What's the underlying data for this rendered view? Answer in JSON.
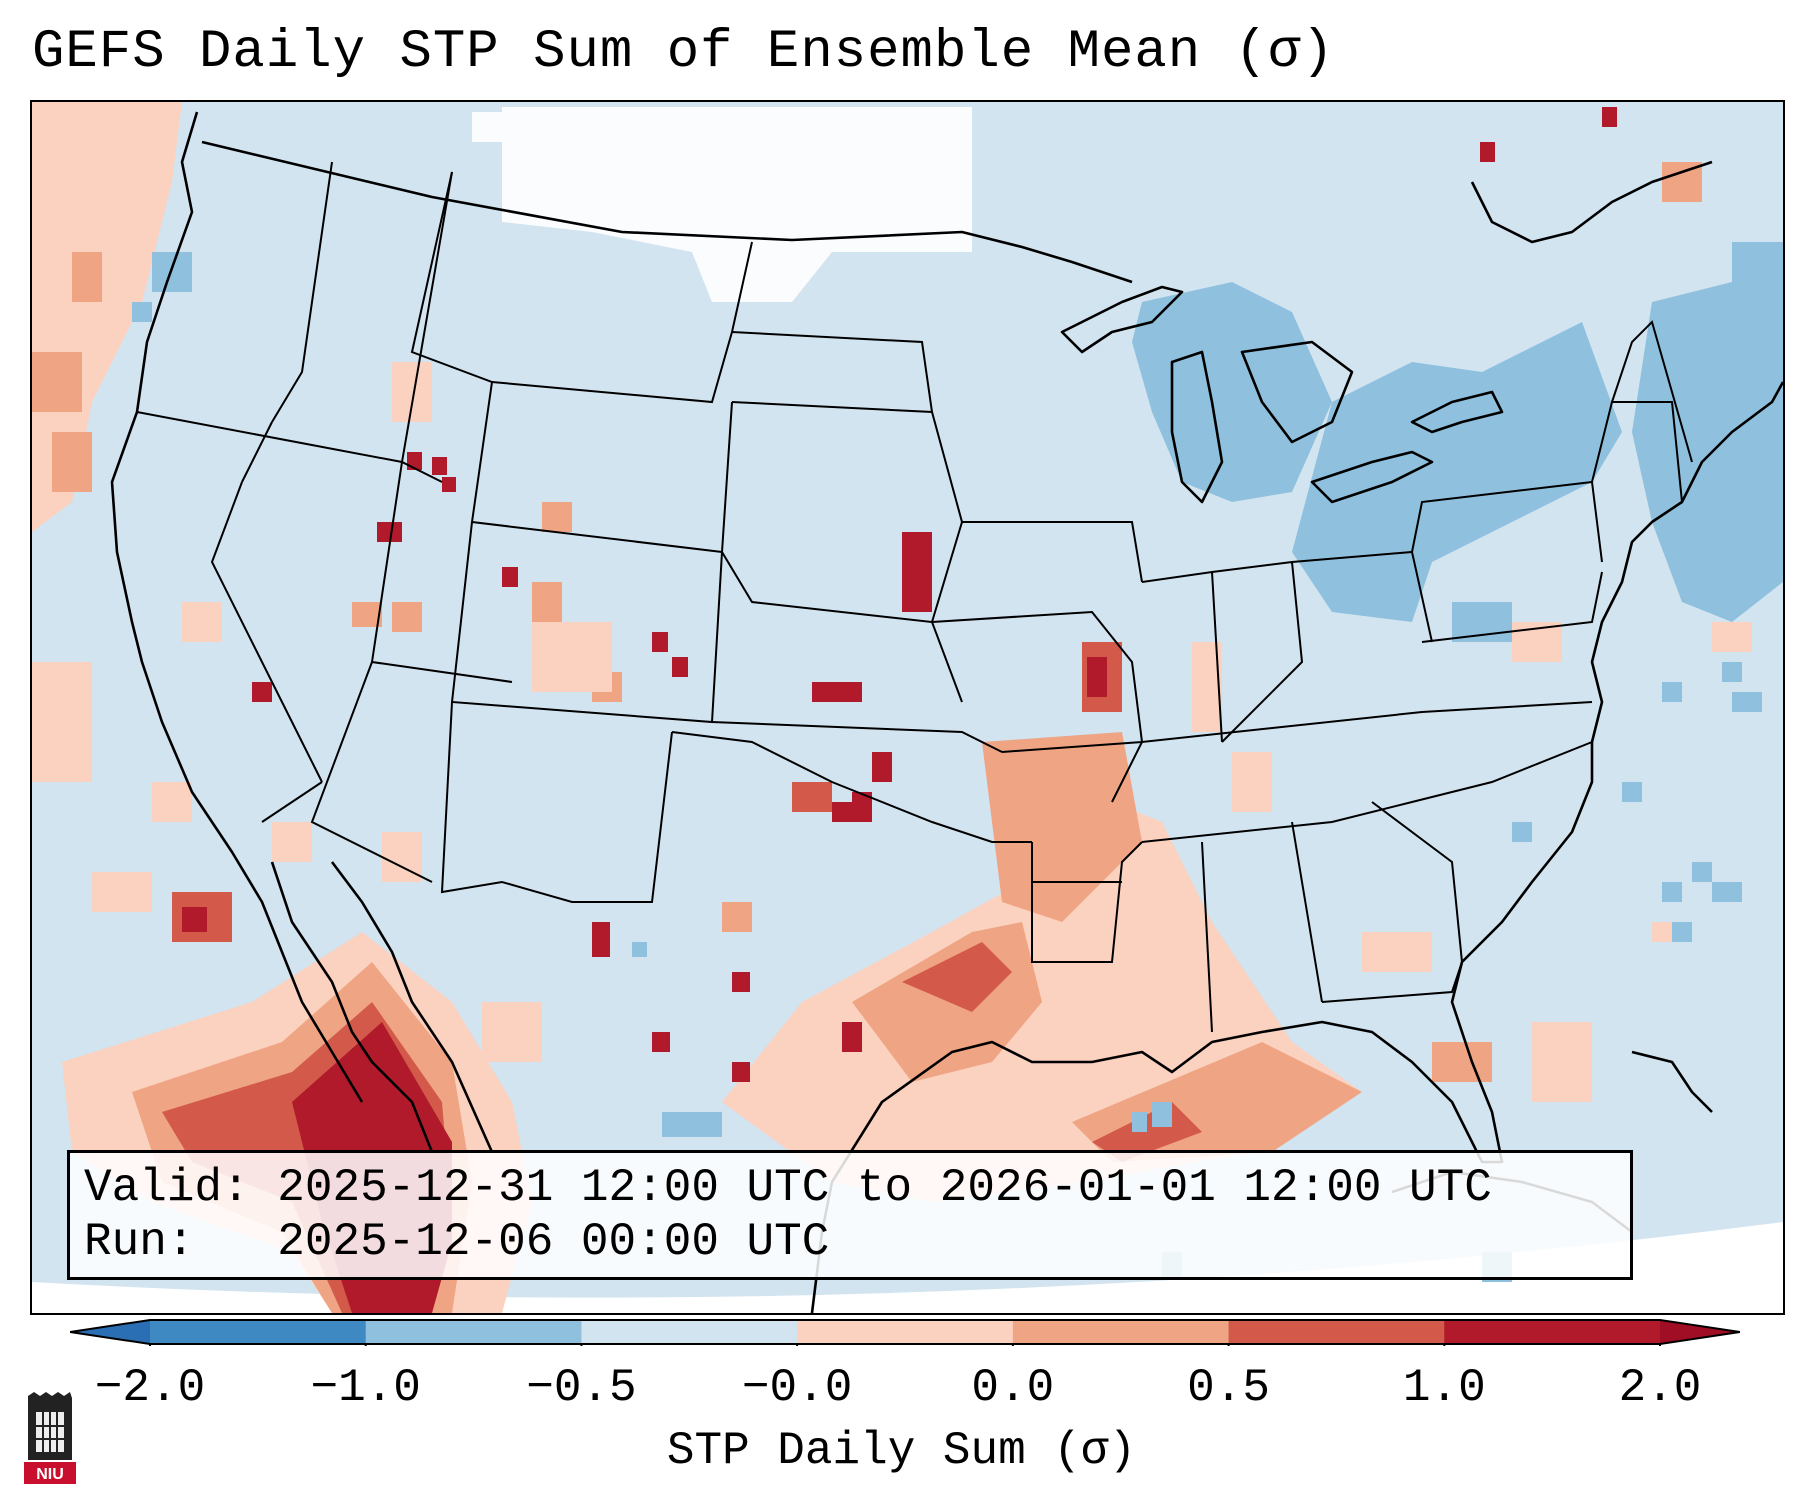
{
  "title": "GEFS Daily STP Sum of Ensemble Mean (σ)",
  "info": {
    "valid_label": "Valid:",
    "valid_text": "2025-12-31 12:00 UTC to 2026-01-01 12:00 UTC",
    "run_label": "Run:",
    "run_text": "2025-12-06 00:00 UTC"
  },
  "colorbar": {
    "label": "STP Daily Sum (σ)",
    "ticks": [
      "−2.0",
      "−1.0",
      "−0.5",
      "−0.0",
      "0.0",
      "0.5",
      "1.0",
      "2.0"
    ],
    "colors": [
      "#3e89c1",
      "#8fc0de",
      "#d2e4f0",
      "#fbfcfe",
      "#fbd1c0",
      "#efa584",
      "#d35a4b",
      "#b01a2a"
    ],
    "extend_min_color": "#2a6fb3",
    "extend_max_color": "#a00e25"
  },
  "map": {
    "background_color": "#d2e4f0",
    "region": "Contiguous United States",
    "features": [
      "high values in northern Mexico and Gulf of California",
      "elevated values over Louisiana, Arkansas, Mississippi Valley",
      "light values across Gulf of Mexico",
      "negative values over Great Lakes and Northeast",
      "near-zero values over Montana and North Dakota"
    ]
  },
  "logo": {
    "text": "NIU"
  }
}
